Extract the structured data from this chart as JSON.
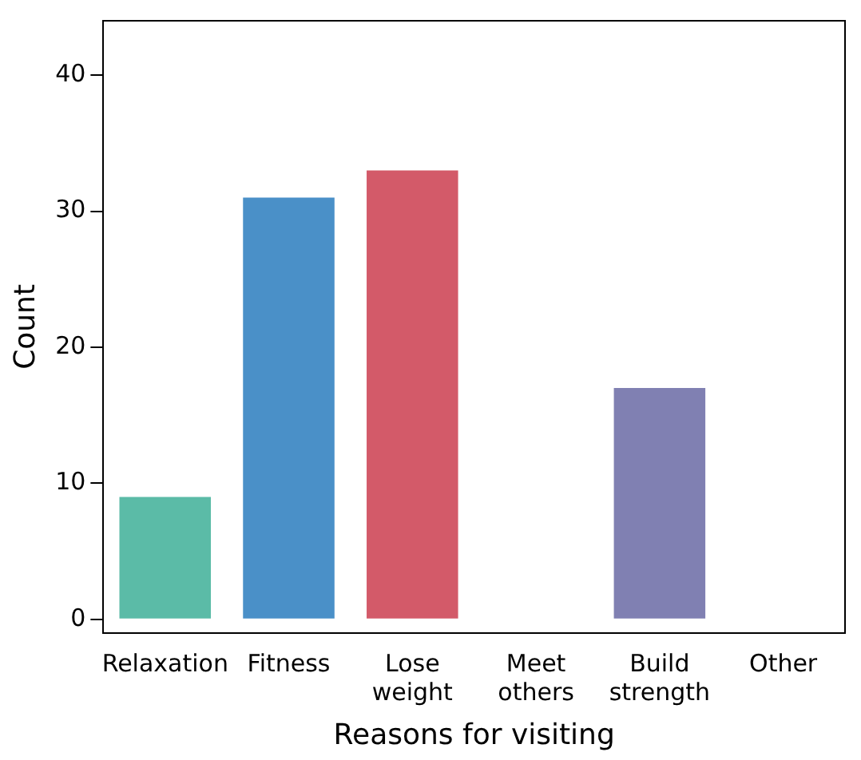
{
  "chart_data": {
    "type": "bar",
    "xlabel": "Reasons for visiting",
    "ylabel": "Count",
    "categories": [
      "Relaxation",
      "Fitness",
      "Lose weight",
      "Meet others",
      "Build strength",
      "Other"
    ],
    "values": [
      9,
      31,
      33,
      0,
      17,
      0
    ],
    "colors": [
      "#5bbba7",
      "#4a90c8",
      "#d35a69",
      "#888888",
      "#8080b2",
      "#888888"
    ],
    "ylim": [
      -1,
      44
    ],
    "yticks": [
      0,
      10,
      20,
      30,
      40
    ],
    "grid": false,
    "legend": false
  }
}
